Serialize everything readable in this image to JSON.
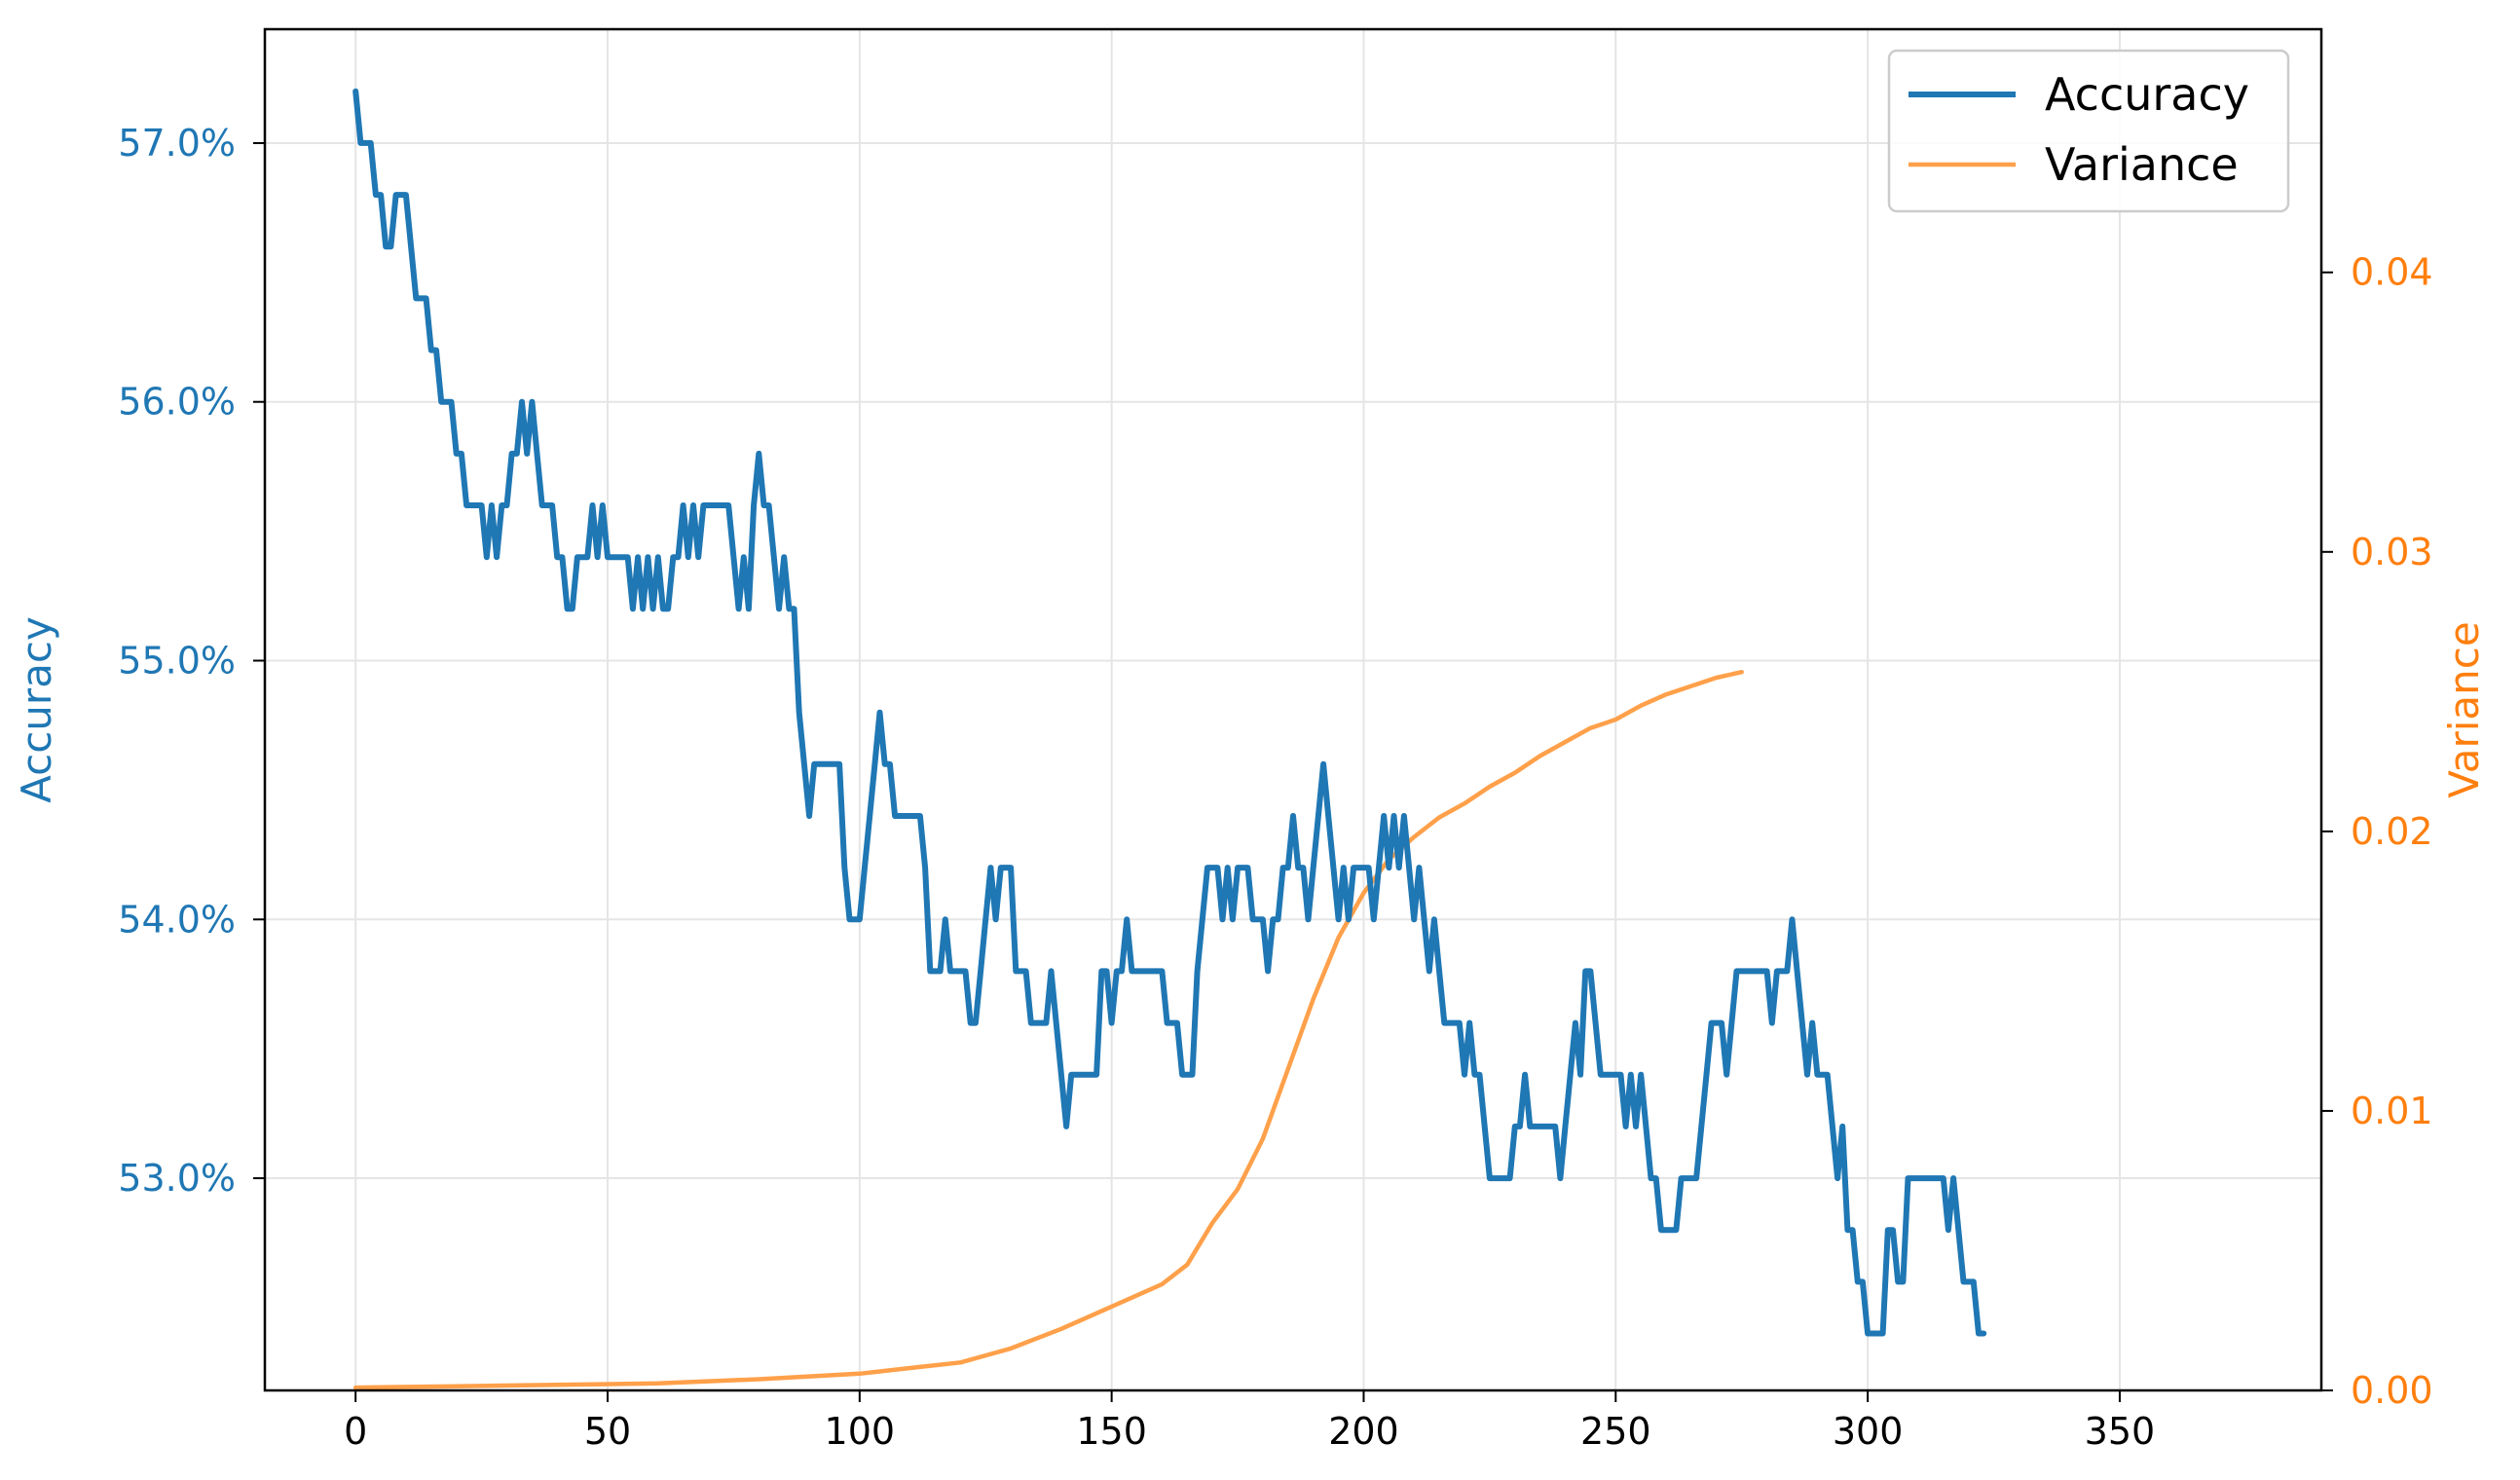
{
  "chart_data": {
    "type": "line",
    "title": "",
    "xlabel": "",
    "ylabel_left": "Accuracy",
    "ylabel_right": "Variance",
    "xlim": [
      -18,
      390
    ],
    "xticks": [
      0,
      50,
      100,
      150,
      200,
      250,
      300,
      350
    ],
    "left_axis": {
      "ylim": [
        52.18,
        57.44
      ],
      "ticks": [
        53.0,
        54.0,
        55.0,
        56.0,
        57.0
      ],
      "tick_labels": [
        "53.0%",
        "54.0%",
        "55.0%",
        "56.0%",
        "57.0%"
      ],
      "color": "#1f77b4"
    },
    "right_axis": {
      "ylim": [
        0,
        0.0487
      ],
      "ticks": [
        0.0,
        0.01,
        0.02,
        0.03,
        0.04
      ],
      "tick_labels": [
        "0.00",
        "0.01",
        "0.02",
        "0.03",
        "0.04"
      ],
      "color": "#ff7f0e"
    },
    "grid": true,
    "legend_position": "top-right",
    "series": [
      {
        "name": "Accuracy",
        "axis": "left",
        "color": "#1f77b4",
        "points": [
          [
            0,
            57.2
          ],
          [
            1,
            57.0
          ],
          [
            3,
            57.0
          ],
          [
            4,
            56.8
          ],
          [
            5,
            56.8
          ],
          [
            6,
            56.6
          ],
          [
            7,
            56.6
          ],
          [
            8,
            56.8
          ],
          [
            10,
            56.8
          ],
          [
            12,
            56.4
          ],
          [
            14,
            56.4
          ],
          [
            15,
            56.2
          ],
          [
            16,
            56.2
          ],
          [
            17,
            56.0
          ],
          [
            19,
            56.0
          ],
          [
            20,
            55.8
          ],
          [
            21,
            55.8
          ],
          [
            22,
            55.6
          ],
          [
            25,
            55.6
          ],
          [
            26,
            55.4
          ],
          [
            27,
            55.6
          ],
          [
            28,
            55.4
          ],
          [
            29,
            55.6
          ],
          [
            30,
            55.6
          ],
          [
            31,
            55.8
          ],
          [
            32,
            55.8
          ],
          [
            33,
            56.0
          ],
          [
            34,
            55.8
          ],
          [
            35,
            56.0
          ],
          [
            36,
            55.8
          ],
          [
            37,
            55.6
          ],
          [
            39,
            55.6
          ],
          [
            40,
            55.4
          ],
          [
            41,
            55.4
          ],
          [
            42,
            55.2
          ],
          [
            43,
            55.2
          ],
          [
            44,
            55.4
          ],
          [
            46,
            55.4
          ],
          [
            47,
            55.6
          ],
          [
            48,
            55.4
          ],
          [
            49,
            55.6
          ],
          [
            50,
            55.4
          ],
          [
            54,
            55.4
          ],
          [
            55,
            55.2
          ],
          [
            56,
            55.4
          ],
          [
            57,
            55.2
          ],
          [
            58,
            55.4
          ],
          [
            59,
            55.2
          ],
          [
            60,
            55.4
          ],
          [
            61,
            55.2
          ],
          [
            62,
            55.2
          ],
          [
            63,
            55.4
          ],
          [
            64,
            55.4
          ],
          [
            65,
            55.6
          ],
          [
            66,
            55.4
          ],
          [
            67,
            55.6
          ],
          [
            68,
            55.4
          ],
          [
            69,
            55.6
          ],
          [
            74,
            55.6
          ],
          [
            76,
            55.2
          ],
          [
            77,
            55.4
          ],
          [
            78,
            55.2
          ],
          [
            79,
            55.6
          ],
          [
            80,
            55.8
          ],
          [
            81,
            55.6
          ],
          [
            82,
            55.6
          ],
          [
            83,
            55.4
          ],
          [
            84,
            55.2
          ],
          [
            85,
            55.4
          ],
          [
            86,
            55.2
          ],
          [
            87,
            55.2
          ],
          [
            88,
            54.8
          ],
          [
            89,
            54.6
          ],
          [
            90,
            54.4
          ],
          [
            91,
            54.6
          ],
          [
            96,
            54.6
          ],
          [
            97,
            54.2
          ],
          [
            98,
            54.0
          ],
          [
            100,
            54.0
          ],
          [
            101,
            54.2
          ],
          [
            102,
            54.4
          ],
          [
            103,
            54.6
          ],
          [
            104,
            54.8
          ],
          [
            105,
            54.6
          ],
          [
            106,
            54.6
          ],
          [
            107,
            54.4
          ],
          [
            112,
            54.4
          ],
          [
            113,
            54.2
          ],
          [
            114,
            53.8
          ],
          [
            116,
            53.8
          ],
          [
            117,
            54.0
          ],
          [
            118,
            53.8
          ],
          [
            121,
            53.8
          ],
          [
            122,
            53.6
          ],
          [
            123,
            53.6
          ],
          [
            124,
            53.8
          ],
          [
            125,
            54.0
          ],
          [
            126,
            54.2
          ],
          [
            127,
            54.0
          ],
          [
            128,
            54.2
          ],
          [
            130,
            54.2
          ],
          [
            131,
            53.8
          ],
          [
            133,
            53.8
          ],
          [
            134,
            53.6
          ],
          [
            137,
            53.6
          ],
          [
            138,
            53.8
          ],
          [
            139,
            53.6
          ],
          [
            140,
            53.4
          ],
          [
            141,
            53.2
          ],
          [
            142,
            53.4
          ],
          [
            147,
            53.4
          ],
          [
            148,
            53.8
          ],
          [
            149,
            53.8
          ],
          [
            150,
            53.6
          ],
          [
            151,
            53.8
          ],
          [
            152,
            53.8
          ],
          [
            153,
            54.0
          ],
          [
            154,
            53.8
          ],
          [
            160,
            53.8
          ],
          [
            161,
            53.6
          ],
          [
            162,
            53.6
          ],
          [
            163,
            53.6
          ],
          [
            164,
            53.4
          ],
          [
            166,
            53.4
          ],
          [
            167,
            53.8
          ],
          [
            168,
            54.0
          ],
          [
            169,
            54.2
          ],
          [
            171,
            54.2
          ],
          [
            172,
            54.0
          ],
          [
            173,
            54.2
          ],
          [
            174,
            54.0
          ],
          [
            175,
            54.2
          ],
          [
            177,
            54.2
          ],
          [
            178,
            54.0
          ],
          [
            180,
            54.0
          ],
          [
            181,
            53.8
          ],
          [
            182,
            54.0
          ],
          [
            183,
            54.0
          ],
          [
            184,
            54.2
          ],
          [
            185,
            54.2
          ],
          [
            186,
            54.4
          ],
          [
            187,
            54.2
          ],
          [
            188,
            54.2
          ],
          [
            189,
            54.0
          ],
          [
            190,
            54.2
          ],
          [
            191,
            54.4
          ],
          [
            192,
            54.6
          ],
          [
            193,
            54.4
          ],
          [
            194,
            54.2
          ],
          [
            195,
            54.0
          ],
          [
            196,
            54.2
          ],
          [
            197,
            54.0
          ],
          [
            198,
            54.2
          ],
          [
            201,
            54.2
          ],
          [
            202,
            54.0
          ],
          [
            203,
            54.2
          ],
          [
            204,
            54.4
          ],
          [
            205,
            54.2
          ],
          [
            206,
            54.4
          ],
          [
            207,
            54.2
          ],
          [
            208,
            54.4
          ],
          [
            209,
            54.2
          ],
          [
            210,
            54.0
          ],
          [
            211,
            54.2
          ],
          [
            212,
            54.0
          ],
          [
            213,
            53.8
          ],
          [
            214,
            54.0
          ],
          [
            215,
            53.8
          ],
          [
            216,
            53.6
          ],
          [
            219,
            53.6
          ],
          [
            220,
            53.4
          ],
          [
            221,
            53.6
          ],
          [
            222,
            53.4
          ],
          [
            223,
            53.4
          ],
          [
            224,
            53.2
          ],
          [
            225,
            53.0
          ],
          [
            229,
            53.0
          ],
          [
            230,
            53.2
          ],
          [
            231,
            53.2
          ],
          [
            232,
            53.4
          ],
          [
            233,
            53.2
          ],
          [
            238,
            53.2
          ],
          [
            239,
            53.0
          ],
          [
            240,
            53.2
          ],
          [
            241,
            53.4
          ],
          [
            242,
            53.6
          ],
          [
            243,
            53.4
          ],
          [
            244,
            53.8
          ],
          [
            245,
            53.8
          ],
          [
            246,
            53.6
          ],
          [
            247,
            53.4
          ],
          [
            251,
            53.4
          ],
          [
            252,
            53.2
          ],
          [
            253,
            53.4
          ],
          [
            254,
            53.2
          ],
          [
            255,
            53.4
          ],
          [
            256,
            53.2
          ],
          [
            257,
            53.0
          ],
          [
            258,
            53.0
          ],
          [
            259,
            52.8
          ],
          [
            262,
            52.8
          ],
          [
            263,
            53.0
          ],
          [
            266,
            53.0
          ],
          [
            267,
            53.2
          ],
          [
            268,
            53.4
          ],
          [
            269,
            53.6
          ],
          [
            271,
            53.6
          ],
          [
            272,
            53.4
          ],
          [
            273,
            53.6
          ],
          [
            274,
            53.8
          ],
          [
            280,
            53.8
          ],
          [
            281,
            53.6
          ],
          [
            282,
            53.8
          ],
          [
            284,
            53.8
          ],
          [
            285,
            54.0
          ],
          [
            286,
            53.8
          ],
          [
            287,
            53.6
          ],
          [
            288,
            53.4
          ],
          [
            289,
            53.6
          ],
          [
            290,
            53.4
          ],
          [
            292,
            53.4
          ],
          [
            293,
            53.2
          ],
          [
            294,
            53.0
          ],
          [
            295,
            53.2
          ],
          [
            296,
            52.8
          ],
          [
            297,
            52.8
          ],
          [
            298,
            52.6
          ],
          [
            299,
            52.6
          ],
          [
            300,
            52.4
          ],
          [
            303,
            52.4
          ],
          [
            304,
            52.8
          ],
          [
            305,
            52.8
          ],
          [
            306,
            52.6
          ],
          [
            307,
            52.6
          ],
          [
            308,
            53.0
          ],
          [
            315,
            53.0
          ],
          [
            316,
            52.8
          ],
          [
            317,
            53.0
          ],
          [
            318,
            52.8
          ],
          [
            319,
            52.6
          ],
          [
            321,
            52.6
          ],
          [
            322,
            52.4
          ],
          [
            323,
            52.4
          ]
        ]
      },
      {
        "name": "Variance",
        "axis": "right",
        "color": "#ffa04a",
        "points": [
          [
            0,
            0.0001
          ],
          [
            20,
            0.00015
          ],
          [
            40,
            0.0002
          ],
          [
            60,
            0.00025
          ],
          [
            80,
            0.0004
          ],
          [
            90,
            0.0005
          ],
          [
            100,
            0.0006
          ],
          [
            110,
            0.0008
          ],
          [
            120,
            0.001
          ],
          [
            130,
            0.0015
          ],
          [
            140,
            0.0022
          ],
          [
            150,
            0.003
          ],
          [
            160,
            0.0038
          ],
          [
            165,
            0.0045
          ],
          [
            170,
            0.006
          ],
          [
            175,
            0.0072
          ],
          [
            180,
            0.009
          ],
          [
            185,
            0.0115
          ],
          [
            190,
            0.014
          ],
          [
            195,
            0.0162
          ],
          [
            200,
            0.0178
          ],
          [
            205,
            0.019
          ],
          [
            210,
            0.0198
          ],
          [
            215,
            0.0205
          ],
          [
            220,
            0.021
          ],
          [
            225,
            0.0216
          ],
          [
            230,
            0.0221
          ],
          [
            235,
            0.0227
          ],
          [
            240,
            0.0232
          ],
          [
            245,
            0.0237
          ],
          [
            250,
            0.024
          ],
          [
            255,
            0.0245
          ],
          [
            260,
            0.0249
          ],
          [
            265,
            0.0252
          ],
          [
            270,
            0.0255
          ],
          [
            275,
            0.0257
          ]
        ]
      }
    ]
  }
}
